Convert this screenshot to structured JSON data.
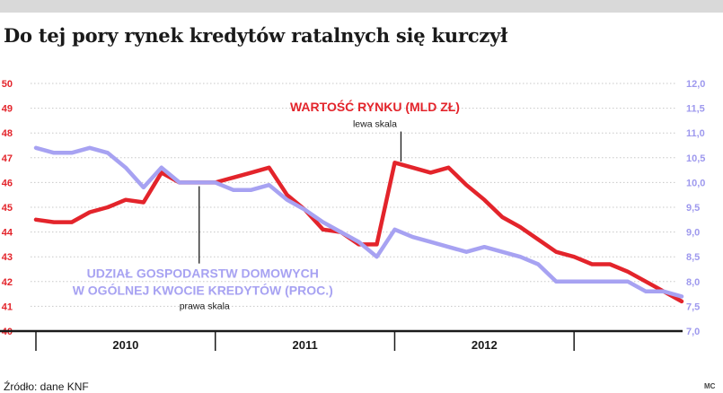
{
  "title": "Do tej pory rynek kredytów ratalnych się kurczył",
  "source": "Źródło: dane KNF",
  "credit": "MC",
  "colors": {
    "red": "#e3242b",
    "lavender": "#a7a2f2",
    "left_axis": "#e3242b",
    "right_axis": "#9e99ee",
    "grid": "#c8c8c8",
    "text": "#1a1a1a",
    "top_rule": "#d9d9d9"
  },
  "chart_data": {
    "type": "line",
    "x_labels": [
      "2010",
      "2011",
      "2012"
    ],
    "x_range": [
      0,
      36.5
    ],
    "x_label_positions": [
      5,
      15,
      25
    ],
    "x_dividers": [
      0,
      10,
      20,
      30
    ],
    "grid": true,
    "left_axis": {
      "range": [
        40,
        50
      ],
      "ticks": [
        {
          "v": 40,
          "label": "40"
        },
        {
          "v": 41,
          "label": "41"
        },
        {
          "v": 42,
          "label": "42"
        },
        {
          "v": 43,
          "label": "43"
        },
        {
          "v": 44,
          "label": "44"
        },
        {
          "v": 45,
          "label": "45"
        },
        {
          "v": 46,
          "label": "46"
        },
        {
          "v": 47,
          "label": "47"
        },
        {
          "v": 48,
          "label": "48"
        },
        {
          "v": 49,
          "label": "49"
        },
        {
          "v": 50,
          "label": "50"
        }
      ]
    },
    "right_axis": {
      "range": [
        7.0,
        12.0
      ],
      "ticks": [
        {
          "v": 7.0,
          "label": "7,0"
        },
        {
          "v": 7.5,
          "label": "7,5"
        },
        {
          "v": 8.0,
          "label": "8,0"
        },
        {
          "v": 8.5,
          "label": "8,5"
        },
        {
          "v": 9.0,
          "label": "9,0"
        },
        {
          "v": 9.5,
          "label": "9,5"
        },
        {
          "v": 10.0,
          "label": "10,0"
        },
        {
          "v": 10.5,
          "label": "10,5"
        },
        {
          "v": 11.0,
          "label": "11,0"
        },
        {
          "v": 11.5,
          "label": "11,5"
        },
        {
          "v": 12.0,
          "label": "12,0"
        }
      ]
    },
    "series": [
      {
        "name": "WARTOŚĆ RYNKU (MLD ZŁ)",
        "axis_note": "lewa skala",
        "axis": "left",
        "color": "#e3242b",
        "points": [
          [
            0,
            44.5
          ],
          [
            1,
            44.4
          ],
          [
            2,
            44.4
          ],
          [
            3,
            44.8
          ],
          [
            4,
            45.0
          ],
          [
            5,
            45.3
          ],
          [
            6,
            45.2
          ],
          [
            7,
            46.4
          ],
          [
            8,
            46.0
          ],
          [
            9,
            46.0
          ],
          [
            10,
            46.0
          ],
          [
            11,
            46.2
          ],
          [
            12,
            46.4
          ],
          [
            13,
            46.6
          ],
          [
            14,
            45.5
          ],
          [
            15,
            44.9
          ],
          [
            16,
            44.1
          ],
          [
            17,
            44.0
          ],
          [
            18,
            43.5
          ],
          [
            19,
            43.5
          ],
          [
            20,
            46.8
          ],
          [
            21,
            46.6
          ],
          [
            22,
            46.4
          ],
          [
            23,
            46.6
          ],
          [
            24,
            45.9
          ],
          [
            25,
            45.3
          ],
          [
            26,
            44.6
          ],
          [
            27,
            44.2
          ],
          [
            28,
            43.7
          ],
          [
            29,
            43.2
          ],
          [
            30,
            43.0
          ],
          [
            31,
            42.7
          ],
          [
            32,
            42.7
          ],
          [
            33,
            42.4
          ],
          [
            34,
            42.0
          ],
          [
            35,
            41.6
          ],
          [
            36,
            41.2
          ]
        ]
      },
      {
        "name": "UDZIAŁ GOSPODARSTW DOMOWYCH W OGÓLNEJ KWOCIE KREDYTÓW (PROC.)",
        "axis_note": "prawa skala",
        "axis": "right",
        "color": "#a7a2f2",
        "points": [
          [
            0,
            10.7
          ],
          [
            1,
            10.6
          ],
          [
            2,
            10.6
          ],
          [
            3,
            10.7
          ],
          [
            4,
            10.6
          ],
          [
            5,
            10.3
          ],
          [
            6,
            9.9
          ],
          [
            7,
            10.3
          ],
          [
            8,
            10.0
          ],
          [
            9,
            10.0
          ],
          [
            10,
            10.0
          ],
          [
            11,
            9.85
          ],
          [
            12,
            9.85
          ],
          [
            13,
            9.95
          ],
          [
            14,
            9.65
          ],
          [
            15,
            9.45
          ],
          [
            16,
            9.2
          ],
          [
            17,
            9.0
          ],
          [
            18,
            8.8
          ],
          [
            19,
            8.5
          ],
          [
            20,
            9.05
          ],
          [
            21,
            8.9
          ],
          [
            22,
            8.8
          ],
          [
            23,
            8.7
          ],
          [
            24,
            8.6
          ],
          [
            25,
            8.7
          ],
          [
            26,
            8.6
          ],
          [
            27,
            8.5
          ],
          [
            28,
            8.35
          ],
          [
            29,
            8.0
          ],
          [
            30,
            8.0
          ],
          [
            31,
            8.0
          ],
          [
            32,
            8.0
          ],
          [
            33,
            8.0
          ],
          [
            34,
            7.8
          ],
          [
            35,
            7.8
          ],
          [
            36,
            7.7
          ]
        ]
      }
    ],
    "annotations": [
      {
        "series": 0,
        "lines": [
          "WARTOŚĆ RYNKU (MLD ZŁ)"
        ],
        "note": "lewa skala",
        "x": 18.9,
        "y": 48.88,
        "note_y": 48.24,
        "anchor_x": 20.35,
        "anchor_y": 46.85
      },
      {
        "series": 1,
        "lines": [
          "UDZIAŁ GOSPODARSTW DOMOWYCH",
          "W OGÓLNEJ KWOCIE KREDYTÓW (PROC.)"
        ],
        "note": "prawa skala",
        "x": 9.3,
        "y": 42.15,
        "note_y": 40.88,
        "anchor_x": 9.1,
        "anchor_y": 45.85
      }
    ]
  }
}
